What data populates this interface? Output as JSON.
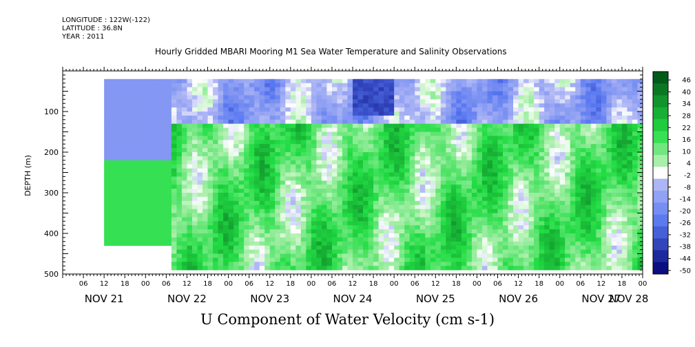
{
  "header": {
    "longitude": "LONGITUDE : 122W(-122)",
    "latitude": "LATITUDE : 36.8N",
    "year": "YEAR : 2011",
    "title": "Hourly Gridded MBARI Mooring M1 Sea Water Temperature and Salinity Observations"
  },
  "footer_title": "U Component of Water Velocity (cm s-1)",
  "chart_data": {
    "type": "heatmap",
    "title": "Hourly Gridded MBARI Mooring M1 Sea Water Temperature and Salinity Observations",
    "xlabel": "",
    "ylabel": "DEPTH (m)",
    "variable_label": "U Component of Water Velocity (cm s-1)",
    "y_inverted": true,
    "ylim": [
      500,
      0
    ],
    "y_ticks": [
      100,
      200,
      300,
      400,
      500
    ],
    "x_hour_ticks": [
      "06",
      "12",
      "18",
      "00",
      "06",
      "12",
      "18",
      "00",
      "06",
      "12",
      "18",
      "00",
      "06",
      "12",
      "18",
      "00",
      "06",
      "12",
      "18",
      "00",
      "06",
      "12",
      "18",
      "00",
      "06",
      "12",
      "18",
      "00",
      "06",
      "12",
      "18",
      "00"
    ],
    "x_date_labels": [
      "NOV 21",
      "NOV 22",
      "NOV 23",
      "NOV 24",
      "NOV 25",
      "NOV 26",
      "NOV 27",
      "NOV 28"
    ],
    "x_range_hours": [
      0,
      168
    ],
    "colorbar_labels": [
      46,
      40,
      34,
      28,
      22,
      16,
      10,
      4,
      -2,
      -8,
      -14,
      -20,
      -26,
      -32,
      -38,
      -44,
      -50
    ],
    "colorbar_range": [
      -50,
      50
    ],
    "colorbar_colors": {
      "deep_negative": "#000070",
      "mid_negative": "#5575f0",
      "weak_negative": "#b0b8f5",
      "near_zero": "#ffffff",
      "weak_positive": "#b0f0b0",
      "mid_positive": "#22dd44",
      "deep_positive": "#004d14"
    },
    "data_extent": {
      "start_hours": 12,
      "end_hours": 168,
      "depth_top_m": 20,
      "depth_bottom_m": 490,
      "early_bottom_m": 430
    },
    "fields": [
      {
        "description_region": "upper layer",
        "depth_range_m": [
          20,
          130
        ],
        "typical_value": -10
      },
      {
        "description_region": "lower layer",
        "depth_range_m": [
          130,
          490
        ],
        "typical_value": 14
      }
    ]
  }
}
